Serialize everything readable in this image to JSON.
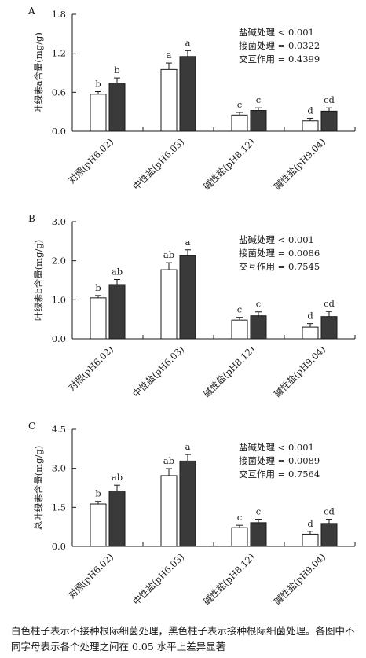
{
  "chart_data": [
    {
      "type": "bar",
      "panel_label": "A",
      "ylabel": "叶绿素a含量(mg/g)",
      "ylim": [
        0,
        1.8
      ],
      "yticks": [
        "0.0",
        "0.6",
        "1.2",
        "1.8"
      ],
      "categories": [
        "对照(pH6.02)",
        "中性盐(pH6.03)",
        "碱性盐(pH8.12)",
        "碱性盐(pH9.04)"
      ],
      "series": [
        {
          "fill": "#ffffff",
          "values": [
            0.57,
            0.95,
            0.25,
            0.16
          ],
          "errors": [
            0.04,
            0.1,
            0.04,
            0.04
          ],
          "letters": [
            "b",
            "a",
            "c",
            "d"
          ]
        },
        {
          "fill": "#3a3a3a",
          "values": [
            0.74,
            1.15,
            0.32,
            0.31
          ],
          "errors": [
            0.08,
            0.09,
            0.04,
            0.05
          ],
          "letters": [
            "b",
            "a",
            "c",
            "cd"
          ]
        }
      ],
      "stats": [
        "盐碱处理 < 0.001",
        "接菌处理 = 0.0322",
        "交互作用 = 0.4399"
      ]
    },
    {
      "type": "bar",
      "panel_label": "B",
      "ylabel": "叶绿素b含量(mg/g)",
      "ylim": [
        0,
        3.0
      ],
      "yticks": [
        "0.0",
        "1.0",
        "2.0",
        "3.0"
      ],
      "categories": [
        "对照(pH6.02)",
        "中性盐(pH6.03)",
        "碱性盐(pH8.12)",
        "碱性盐(pH9.04)"
      ],
      "series": [
        {
          "fill": "#ffffff",
          "values": [
            1.05,
            1.77,
            0.48,
            0.3
          ],
          "errors": [
            0.06,
            0.18,
            0.07,
            0.09
          ],
          "letters": [
            "b",
            "ab",
            "c",
            "d"
          ]
        },
        {
          "fill": "#3a3a3a",
          "values": [
            1.39,
            2.13,
            0.59,
            0.57
          ],
          "errors": [
            0.13,
            0.15,
            0.1,
            0.13
          ],
          "letters": [
            "ab",
            "a",
            "c",
            "cd"
          ]
        }
      ],
      "stats": [
        "盐碱处理 < 0.001",
        "接菌处理 = 0.0086",
        "交互作用 = 0.7545"
      ]
    },
    {
      "type": "bar",
      "panel_label": "C",
      "ylabel": "总叶绿素含量(mg/g)",
      "ylim": [
        0,
        4.5
      ],
      "yticks": [
        "0.0",
        "1.5",
        "3.0",
        "4.5"
      ],
      "categories": [
        "对照(pH6.02)",
        "中性盐(pH6.03)",
        "碱性盐(pH8.12)",
        "碱性盐(pH9.04)"
      ],
      "series": [
        {
          "fill": "#ffffff",
          "values": [
            1.63,
            2.72,
            0.72,
            0.47
          ],
          "errors": [
            0.1,
            0.27,
            0.09,
            0.11
          ],
          "letters": [
            "b",
            "ab",
            "c",
            "d"
          ]
        },
        {
          "fill": "#3a3a3a",
          "values": [
            2.13,
            3.28,
            0.91,
            0.88
          ],
          "errors": [
            0.22,
            0.25,
            0.13,
            0.16
          ],
          "letters": [
            "ab",
            "a",
            "c",
            "cd"
          ]
        }
      ],
      "stats": [
        "盐碱处理 < 0.001",
        "接菌处理 = 0.0089",
        "交互作用 = 0.7564"
      ]
    }
  ],
  "caption": "白色柱子表示不接种根际细菌处理，黑色柱子表示接种根际细菌处理。各图中不同字母表示各个处理之间在 0.05 水平上差异显著"
}
